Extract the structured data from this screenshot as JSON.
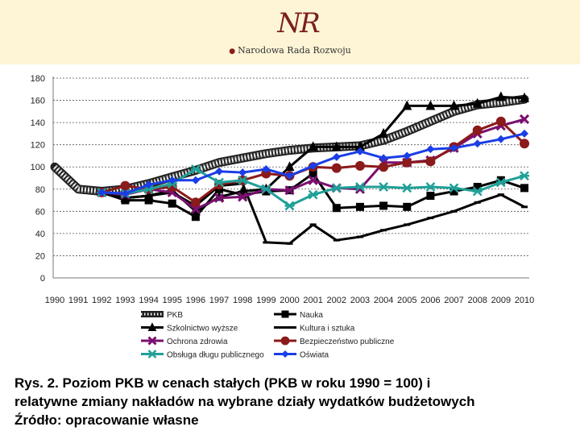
{
  "header": {
    "logo_mark": "NR",
    "org_name": "Narodowa Rada Rozwoju"
  },
  "caption": {
    "line1": "Rys. 2. Poziom PKB w cenach stałych (PKB w roku 1990 = 100) i",
    "line2": "relatywne zmiany nakładów na wybrane działy wydatków budżetowych",
    "line3": "Źródło: opracowanie własne"
  },
  "chart_data": {
    "type": "line",
    "title": "",
    "xlabel": "",
    "ylabel": "",
    "ylim": [
      0,
      180
    ],
    "yticks": [
      0,
      20,
      40,
      60,
      80,
      100,
      120,
      140,
      160,
      180
    ],
    "grid": "horizontal dotted",
    "categories": [
      "1990",
      "1991",
      "1992",
      "1993",
      "1994",
      "1995",
      "1996",
      "1997",
      "1998",
      "1999",
      "2000",
      "2001",
      "2002",
      "2003",
      "2004",
      "2005",
      "2006",
      "2007",
      "2008",
      "2009",
      "2010"
    ],
    "series": [
      {
        "name": "PKB",
        "color": "#1a1a1a",
        "style": "checkered",
        "marker": "none",
        "values": [
          100,
          80,
          78,
          80,
          85,
          91,
          97,
          104,
          108,
          112,
          115,
          117,
          118,
          119,
          124,
          132,
          141,
          150,
          156,
          158,
          161
        ]
      },
      {
        "name": "Nauka",
        "color": "#000000",
        "style": "solid",
        "marker": "square",
        "values": [
          null,
          null,
          77,
          70,
          70,
          67,
          55,
          80,
          75,
          78,
          79,
          94,
          63,
          64,
          65,
          64,
          74,
          78,
          82,
          88,
          81
        ]
      },
      {
        "name": "Szkolnictwo wyższe",
        "color": "#000000",
        "style": "solid",
        "marker": "triangle",
        "values": [
          null,
          null,
          77,
          72,
          74,
          79,
          60,
          73,
          78,
          80,
          100,
          118,
          118,
          118,
          130,
          155,
          155,
          155,
          157,
          163,
          162
        ]
      },
      {
        "name": "Kultura i sztuka",
        "color": "#000000",
        "style": "solid",
        "marker": "dash",
        "values": [
          null,
          null,
          77,
          72,
          74,
          77,
          65,
          83,
          85,
          32,
          31,
          48,
          34,
          37,
          43,
          48,
          54,
          60,
          68,
          75,
          64
        ]
      },
      {
        "name": "Ochrona zdrowia",
        "color": "#7a1070",
        "style": "solid",
        "marker": "x",
        "values": [
          null,
          null,
          77,
          75,
          80,
          77,
          62,
          72,
          73,
          80,
          79,
          88,
          81,
          80,
          104,
          104,
          106,
          117,
          130,
          137,
          143
        ]
      },
      {
        "name": "Bezpieczeństwo publiczne",
        "color": "#8b1a1a",
        "style": "solid",
        "marker": "circle",
        "values": [
          null,
          null,
          77,
          83,
          80,
          82,
          68,
          84,
          88,
          94,
          92,
          100,
          99,
          101,
          100,
          104,
          105,
          118,
          133,
          141,
          121
        ]
      },
      {
        "name": "Obsługa długu publicznego",
        "color": "#20a098",
        "style": "solid",
        "marker": "star",
        "values": [
          null,
          null,
          77,
          76,
          80,
          85,
          98,
          86,
          88,
          80,
          65,
          75,
          81,
          82,
          82,
          81,
          82,
          81,
          78,
          86,
          92
        ]
      },
      {
        "name": "Oświata",
        "color": "#1a3ee6",
        "style": "solid",
        "marker": "diamond",
        "values": [
          null,
          null,
          77,
          76,
          84,
          88,
          88,
          96,
          95,
          98,
          92,
          101,
          109,
          114,
          108,
          110,
          116,
          117,
          121,
          125,
          130
        ]
      }
    ],
    "legend_position": "bottom"
  }
}
